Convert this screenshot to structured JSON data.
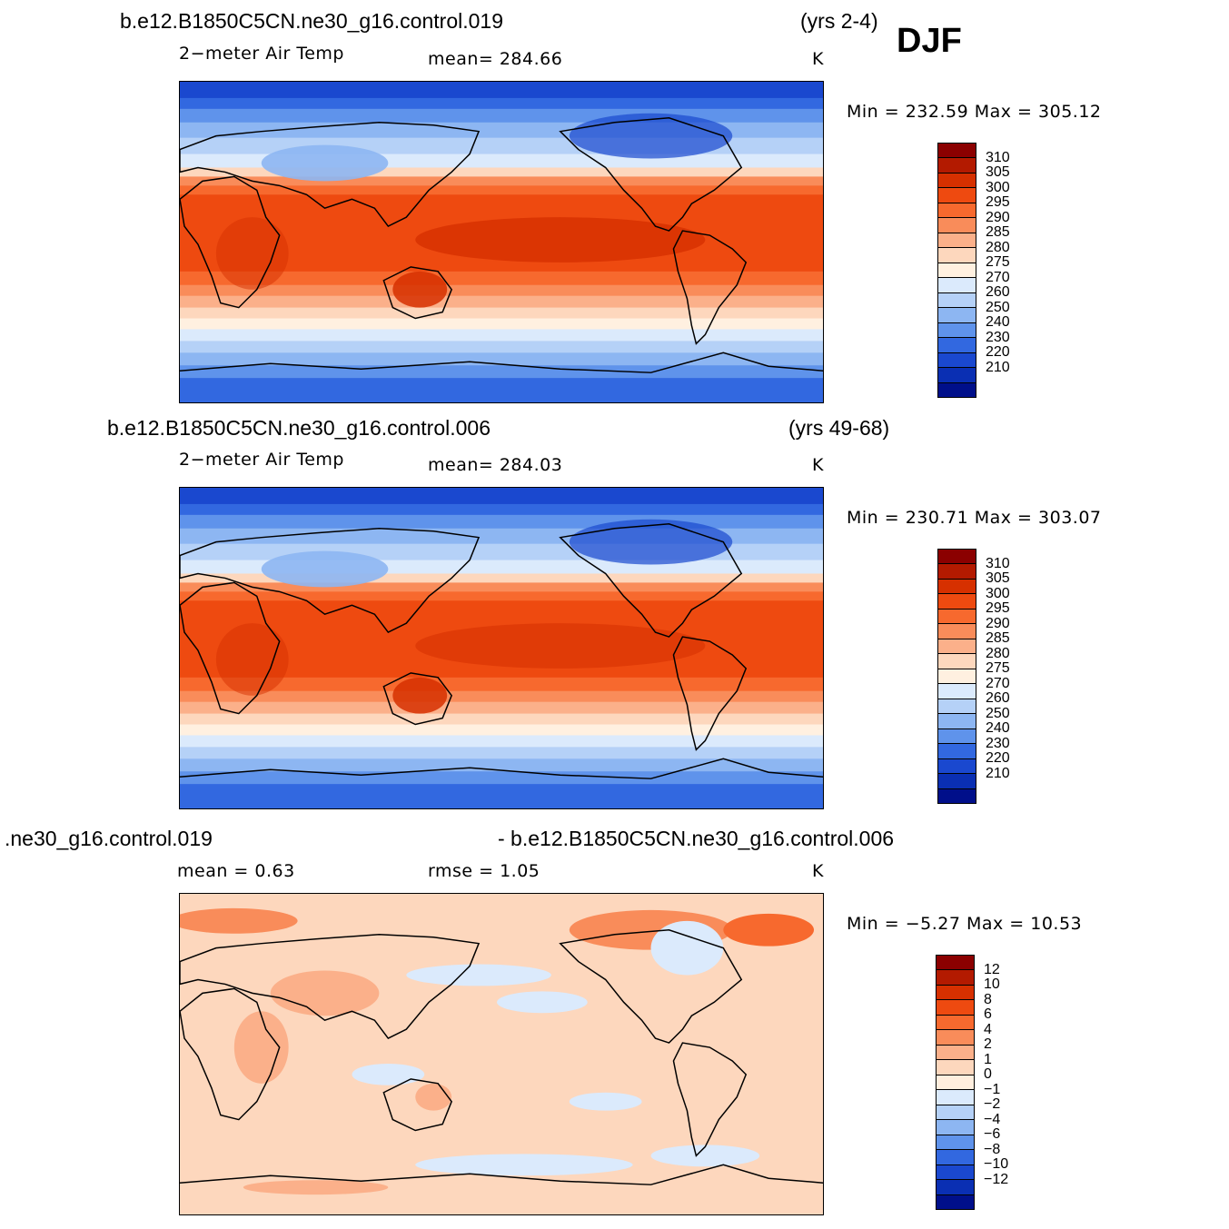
{
  "season": "DJF",
  "panels": [
    {
      "run_title": "b.e12.B1850C5CN.ne30_g16.control.019",
      "years": "(yrs 2-4)",
      "variable": "2−meter Air Temp",
      "stat_label": "mean=  284.66",
      "units": "K",
      "minmax": "Min  =  232.59  Max  =  305.12",
      "kind": "abs"
    },
    {
      "run_title": "b.e12.B1850C5CN.ne30_g16.control.006",
      "years": "(yrs 49-68)",
      "variable": "2−meter Air Temp",
      "stat_label": "mean=  284.03",
      "units": "K",
      "minmax": "Min  =  230.71  Max  =  303.07",
      "kind": "abs"
    },
    {
      "run_title": ".ne30_g16.control.019",
      "run_title_right": "- b.e12.B1850C5CN.ne30_g16.control.006",
      "mean_label": "mean  =     0.63",
      "rmse_label": "rmse  =     1.05",
      "units": "K",
      "minmax": "Min  =    −5.27  Max  =     10.53",
      "kind": "diff"
    }
  ],
  "colorbar_abs": {
    "labels": [
      "310",
      "305",
      "300",
      "295",
      "290",
      "285",
      "280",
      "275",
      "270",
      "260",
      "250",
      "240",
      "230",
      "220",
      "210"
    ],
    "colors": [
      "#8b0000",
      "#b31a00",
      "#d63000",
      "#ee4a10",
      "#f7692e",
      "#f98c5a",
      "#fbb08a",
      "#fdd7bd",
      "#fff0e0",
      "#dbeafc",
      "#b5d1f7",
      "#8db6f2",
      "#5f93eb",
      "#3268e0",
      "#1a48cf",
      "#0a2fb3",
      "#000f8a"
    ]
  },
  "colorbar_diff": {
    "labels": [
      "12",
      "10",
      "8",
      "6",
      "4",
      "2",
      "1",
      "0",
      "−1",
      "−2",
      "−4",
      "−6",
      "−8",
      "−10",
      "−12"
    ],
    "colors": [
      "#8b0000",
      "#b31a00",
      "#d63000",
      "#ee4a10",
      "#f7692e",
      "#f98c5a",
      "#fbb08a",
      "#fdd7bd",
      "#ffeede",
      "#dbeafc",
      "#b5d1f7",
      "#8db6f2",
      "#5f93eb",
      "#3268e0",
      "#1a48cf",
      "#0a2fb3",
      "#000f8a"
    ]
  }
}
